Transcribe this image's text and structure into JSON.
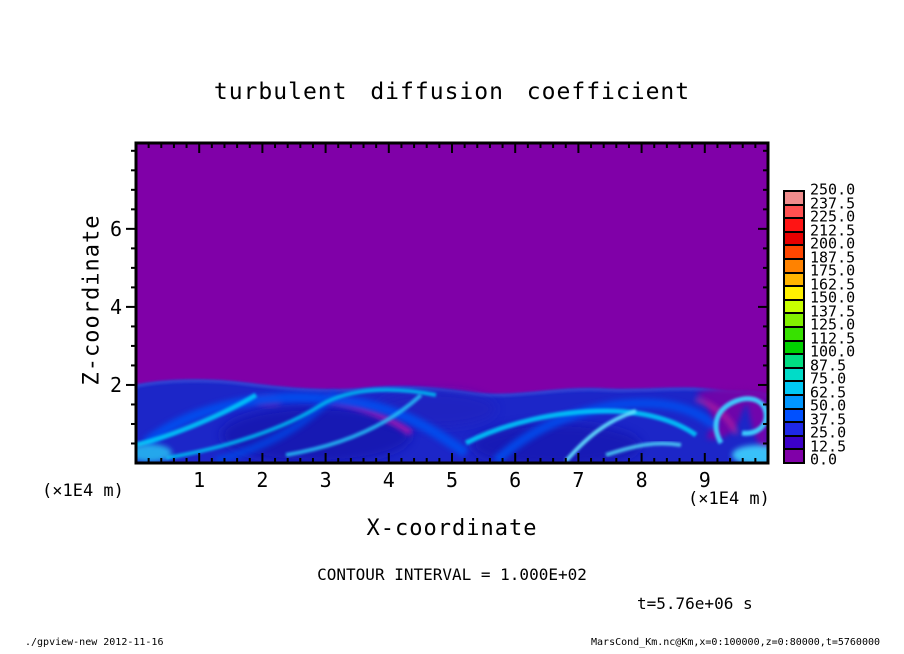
{
  "title": "turbulent diffusion coefficient",
  "axes": {
    "x": {
      "label": "X-coordinate",
      "unit": "(×1E4 m)",
      "major_ticks": [
        1,
        2,
        3,
        4,
        5,
        6,
        7,
        8,
        9
      ]
    },
    "y": {
      "label": "Z-coordinate",
      "unit": "(×1E4 m)",
      "major_ticks": [
        2,
        4,
        6
      ]
    }
  },
  "annotations": {
    "contour_interval": "CONTOUR INTERVAL = 1.000E+02",
    "time_stamp": "t=5.76e+06 s"
  },
  "footer": {
    "left": "./gpview-new  2012-11-16",
    "right": "MarsCond_Km.nc@Km,x=0:100000,z=0:80000,t=5760000"
  },
  "chart_data": {
    "type": "heatmap",
    "title": "turbulent diffusion coefficient",
    "xlabel": "X-coordinate",
    "ylabel": "Z-coordinate",
    "x_unit_label": "(×1E4 m)",
    "y_unit_label": "(×1E4 m)",
    "x_range_e4m": [
      0,
      10
    ],
    "z_range_e4m": [
      0,
      8.2
    ],
    "x_major_ticks": [
      1,
      2,
      3,
      4,
      5,
      6,
      7,
      8,
      9
    ],
    "x_minor_step": 0.2,
    "z_major_ticks": [
      2,
      4,
      6
    ],
    "z_minor_step": 0.5,
    "contour_interval": 100.0,
    "time_seconds": 5760000,
    "time_label": "t=5.76e+06 s",
    "colorbar": {
      "min": 0.0,
      "max": 250.0,
      "step": 12.5,
      "tick_labels_top_to_bottom": [
        "250.0",
        "237.5",
        "225.0",
        "212.5",
        "200.0",
        "187.5",
        "175.0",
        "162.5",
        "150.0",
        "137.5",
        "125.0",
        "112.5",
        "100.0",
        "87.5",
        "75.0",
        "62.5",
        "50.0",
        "37.5",
        "25.0",
        "12.5",
        "0.0"
      ],
      "colors_top_to_bottom": [
        "#F08C8C",
        "#FF5050",
        "#FF1414",
        "#E60000",
        "#FF4600",
        "#FF8200",
        "#FFB400",
        "#FFF000",
        "#C8FF00",
        "#82F000",
        "#37E100",
        "#00D200",
        "#00DC82",
        "#00DCC8",
        "#00C8F5",
        "#0096FF",
        "#0050FF",
        "#1E28E6",
        "#3C00C8",
        "#8000A8"
      ]
    },
    "field_summary": {
      "upper_region": "value ≈ 0 (purple) everywhere above z ≈ 2×1E4 m",
      "lower_region": "turbulent mixed layer below z ≈ 2×1E4 m: blue eddies with values ≈ 12.5–100, bright cyan filaments, purple entrainment wisps and magenta streaks, deep purple intrusion with swirl near right edge",
      "mixed_layer_top_profile": {
        "x_e4m": [
          0,
          1,
          2,
          3,
          4,
          5,
          6,
          7,
          8,
          9,
          10
        ],
        "z_e4m": [
          2.0,
          2.1,
          2.05,
          1.95,
          2.0,
          2.1,
          2.05,
          2.0,
          2.0,
          1.9,
          1.7
        ]
      }
    }
  }
}
